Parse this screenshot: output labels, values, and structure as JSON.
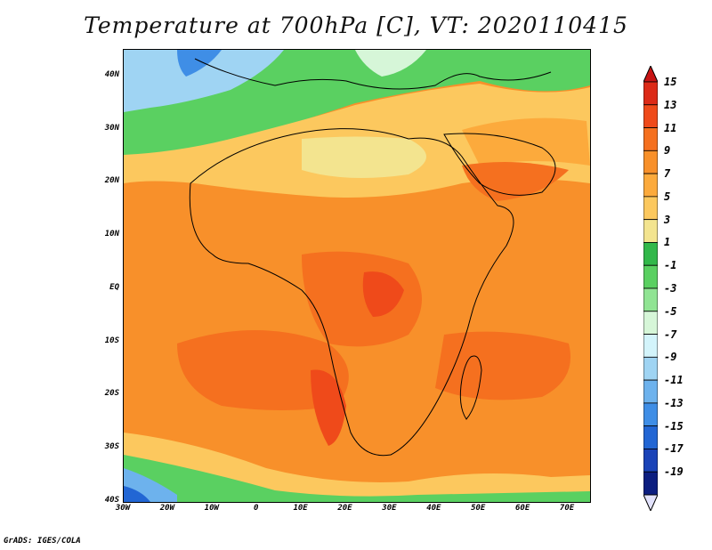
{
  "title": "Temperature at 700hPa [C], VT: 2020110415",
  "credit": "GrADS: IGES/COLA",
  "map": {
    "lon_range": [
      -30,
      75
    ],
    "lat_range": [
      -40,
      45
    ],
    "lat_ticks": [
      "40N",
      "30N",
      "20N",
      "10N",
      "EQ",
      "10S",
      "20S",
      "30S",
      "40S"
    ],
    "lat_tick_values": [
      40,
      30,
      20,
      10,
      0,
      -10,
      -20,
      -30,
      -40
    ],
    "lon_ticks": [
      "30W",
      "20W",
      "10W",
      "0",
      "10E",
      "20E",
      "30E",
      "40E",
      "50E",
      "60E",
      "70E"
    ],
    "lon_tick_values": [
      -30,
      -20,
      -10,
      0,
      10,
      20,
      30,
      40,
      50,
      60,
      70
    ]
  },
  "colorbar": {
    "labels": [
      "15",
      "13",
      "11",
      "9",
      "7",
      "5",
      "3",
      "1",
      "-1",
      "-3",
      "-5",
      "-7",
      "-9",
      "-11",
      "-13",
      "-15",
      "-17",
      "-19"
    ],
    "colors": [
      "#dc2a17",
      "#ef4a1a",
      "#f5701f",
      "#f8902a",
      "#fcaa3c",
      "#fcc85e",
      "#f3e48f",
      "#32b84a",
      "#5ad061",
      "#90e493",
      "#d6f6d8",
      "#d3f4fb",
      "#9fd4f3",
      "#6db2ed",
      "#3f8ee6",
      "#2266d4",
      "#1a43b8",
      "#0c1e80"
    ],
    "top_arrow_color": "#c81414",
    "bottom_arrow_color": "#e2e2fc"
  }
}
